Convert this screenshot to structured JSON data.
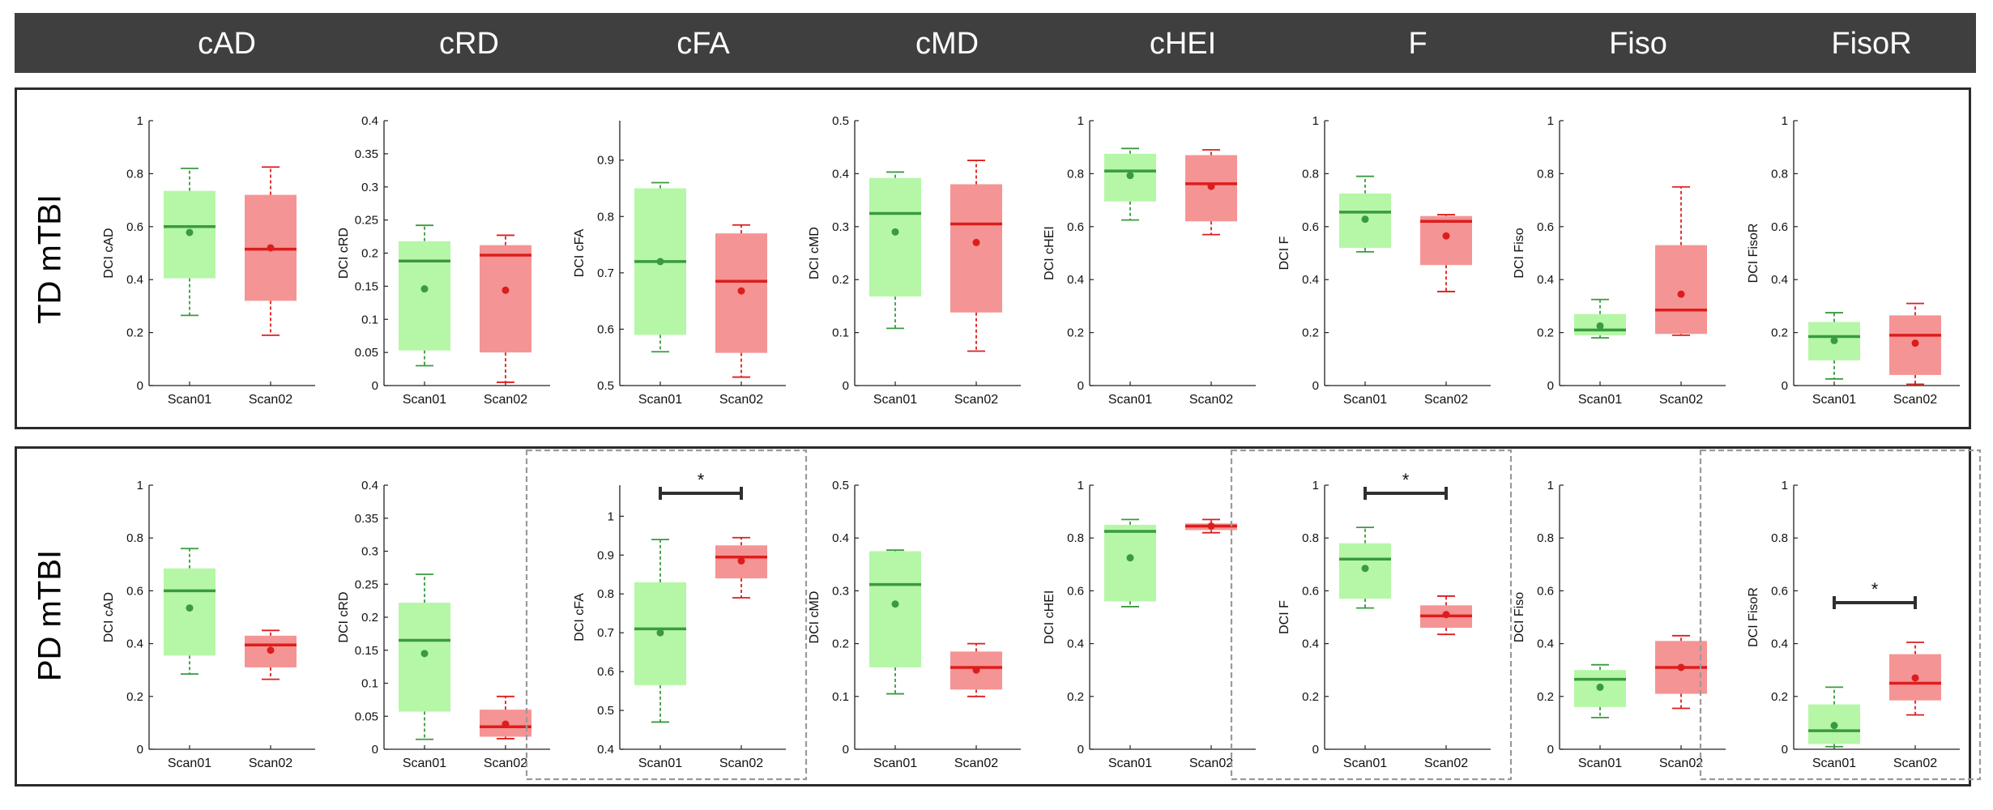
{
  "header": {
    "columns": [
      "cAD",
      "cRD",
      "cFA",
      "cMD",
      "cHEI",
      "F",
      "Fiso",
      "FisoR"
    ]
  },
  "rows": [
    {
      "label": "TD mTBI"
    },
    {
      "label": "PD mTBI"
    }
  ],
  "colors": {
    "header_bg": "#3f3f3f",
    "scan01_fill": "#b5f7a7",
    "scan01_line": "#3a9a3f",
    "scan02_fill": "#f59494",
    "scan02_line": "#dd1d1d",
    "sig_bar": "#2f2f2f",
    "sig_box": "#9a9a9a"
  },
  "chart_data": [
    {
      "type": "box",
      "row": "TD mTBI",
      "title": "cAD",
      "ylabel": "DCI cAD",
      "categories": [
        "Scan01",
        "Scan02"
      ],
      "ylim": [
        0,
        1
      ],
      "yticks": [
        "0",
        "0.2",
        "0.4",
        "0.6",
        "0.8",
        "1"
      ],
      "significance": null,
      "series": [
        {
          "name": "Scan01",
          "whisker_low": 0.265,
          "q1": 0.405,
          "median": 0.6,
          "q3": 0.735,
          "whisker_high": 0.82,
          "mean": 0.578
        },
        {
          "name": "Scan02",
          "whisker_low": 0.19,
          "q1": 0.32,
          "median": 0.515,
          "q3": 0.72,
          "whisker_high": 0.825,
          "mean": 0.52
        }
      ]
    },
    {
      "type": "box",
      "row": "TD mTBI",
      "title": "cRD",
      "ylabel": "DCI cRD",
      "categories": [
        "Scan01",
        "Scan02"
      ],
      "ylim": [
        0,
        0.4
      ],
      "yticks": [
        "0",
        "0.05",
        "0.1",
        "0.15",
        "0.2",
        "0.25",
        "0.3",
        "0.35",
        "0.4"
      ],
      "significance": null,
      "series": [
        {
          "name": "Scan01",
          "whisker_low": 0.03,
          "q1": 0.053,
          "median": 0.188,
          "q3": 0.218,
          "whisker_high": 0.242,
          "mean": 0.146
        },
        {
          "name": "Scan02",
          "whisker_low": 0.005,
          "q1": 0.05,
          "median": 0.197,
          "q3": 0.212,
          "whisker_high": 0.227,
          "mean": 0.144
        }
      ]
    },
    {
      "type": "box",
      "row": "TD mTBI",
      "title": "cFA",
      "ylabel": "DCI cFA",
      "categories": [
        "Scan01",
        "Scan02"
      ],
      "ylim": [
        0.5,
        0.97
      ],
      "yticks": [
        "0.5",
        "0.6",
        "0.7",
        "0.8",
        "0.9"
      ],
      "significance": null,
      "series": [
        {
          "name": "Scan01",
          "whisker_low": 0.56,
          "q1": 0.59,
          "median": 0.72,
          "q3": 0.85,
          "whisker_high": 0.86,
          "mean": 0.72
        },
        {
          "name": "Scan02",
          "whisker_low": 0.515,
          "q1": 0.558,
          "median": 0.685,
          "q3": 0.77,
          "whisker_high": 0.785,
          "mean": 0.668
        }
      ]
    },
    {
      "type": "box",
      "row": "TD mTBI",
      "title": "cMD",
      "ylabel": "DCI cMD",
      "categories": [
        "Scan01",
        "Scan02"
      ],
      "ylim": [
        0,
        0.5
      ],
      "yticks": [
        "0",
        "0.1",
        "0.2",
        "0.3",
        "0.4",
        "0.5"
      ],
      "significance": null,
      "series": [
        {
          "name": "Scan01",
          "whisker_low": 0.108,
          "q1": 0.168,
          "median": 0.325,
          "q3": 0.392,
          "whisker_high": 0.403,
          "mean": 0.29
        },
        {
          "name": "Scan02",
          "whisker_low": 0.065,
          "q1": 0.138,
          "median": 0.305,
          "q3": 0.38,
          "whisker_high": 0.425,
          "mean": 0.27
        }
      ]
    },
    {
      "type": "box",
      "row": "TD mTBI",
      "title": "cHEI",
      "ylabel": "DCI cHEI",
      "categories": [
        "Scan01",
        "Scan02"
      ],
      "ylim": [
        0,
        1
      ],
      "yticks": [
        "0",
        "0.2",
        "0.4",
        "0.6",
        "0.8",
        "1"
      ],
      "significance": null,
      "series": [
        {
          "name": "Scan01",
          "whisker_low": 0.625,
          "q1": 0.695,
          "median": 0.81,
          "q3": 0.875,
          "whisker_high": 0.895,
          "mean": 0.793
        },
        {
          "name": "Scan02",
          "whisker_low": 0.57,
          "q1": 0.62,
          "median": 0.762,
          "q3": 0.87,
          "whisker_high": 0.89,
          "mean": 0.752
        }
      ]
    },
    {
      "type": "box",
      "row": "TD mTBI",
      "title": "F",
      "ylabel": "DCI F",
      "categories": [
        "Scan01",
        "Scan02"
      ],
      "ylim": [
        0,
        1
      ],
      "yticks": [
        "0",
        "0.2",
        "0.4",
        "0.6",
        "0.8",
        "1"
      ],
      "significance": null,
      "series": [
        {
          "name": "Scan01",
          "whisker_low": 0.505,
          "q1": 0.52,
          "median": 0.655,
          "q3": 0.725,
          "whisker_high": 0.79,
          "mean": 0.628
        },
        {
          "name": "Scan02",
          "whisker_low": 0.355,
          "q1": 0.455,
          "median": 0.62,
          "q3": 0.64,
          "whisker_high": 0.645,
          "mean": 0.565
        }
      ]
    },
    {
      "type": "box",
      "row": "TD mTBI",
      "title": "Fiso",
      "ylabel": "DCI Fiso",
      "categories": [
        "Scan01",
        "Scan02"
      ],
      "ylim": [
        0,
        1
      ],
      "yticks": [
        "0",
        "0.2",
        "0.4",
        "0.6",
        "0.8",
        "1"
      ],
      "significance": null,
      "series": [
        {
          "name": "Scan01",
          "whisker_low": 0.18,
          "q1": 0.19,
          "median": 0.21,
          "q3": 0.27,
          "whisker_high": 0.325,
          "mean": 0.225
        },
        {
          "name": "Scan02",
          "whisker_low": 0.19,
          "q1": 0.195,
          "median": 0.285,
          "q3": 0.53,
          "whisker_high": 0.75,
          "mean": 0.345
        }
      ]
    },
    {
      "type": "box",
      "row": "TD mTBI",
      "title": "FisoR",
      "ylabel": "DCI FisoR",
      "categories": [
        "Scan01",
        "Scan02"
      ],
      "ylim": [
        0,
        1
      ],
      "yticks": [
        "0",
        "0.2",
        "0.4",
        "0.6",
        "0.8",
        "1"
      ],
      "significance": null,
      "series": [
        {
          "name": "Scan01",
          "whisker_low": 0.025,
          "q1": 0.095,
          "median": 0.185,
          "q3": 0.24,
          "whisker_high": 0.275,
          "mean": 0.17
        },
        {
          "name": "Scan02",
          "whisker_low": 0.005,
          "q1": 0.04,
          "median": 0.19,
          "q3": 0.265,
          "whisker_high": 0.31,
          "mean": 0.16
        }
      ]
    },
    {
      "type": "box",
      "row": "PD mTBI",
      "title": "cAD",
      "ylabel": "DCI cAD",
      "categories": [
        "Scan01",
        "Scan02"
      ],
      "ylim": [
        0,
        1
      ],
      "yticks": [
        "0",
        "0.2",
        "0.4",
        "0.6",
        "0.8",
        "1"
      ],
      "significance": null,
      "series": [
        {
          "name": "Scan01",
          "whisker_low": 0.285,
          "q1": 0.355,
          "median": 0.6,
          "q3": 0.685,
          "whisker_high": 0.76,
          "mean": 0.535
        },
        {
          "name": "Scan02",
          "whisker_low": 0.265,
          "q1": 0.31,
          "median": 0.395,
          "q3": 0.43,
          "whisker_high": 0.45,
          "mean": 0.375
        }
      ]
    },
    {
      "type": "box",
      "row": "PD mTBI",
      "title": "cRD",
      "ylabel": "DCI cRD",
      "categories": [
        "Scan01",
        "Scan02"
      ],
      "ylim": [
        0,
        0.4
      ],
      "yticks": [
        "0",
        "0.05",
        "0.1",
        "0.15",
        "0.2",
        "0.25",
        "0.3",
        "0.35",
        "0.4"
      ],
      "significance": null,
      "series": [
        {
          "name": "Scan01",
          "whisker_low": 0.015,
          "q1": 0.057,
          "median": 0.165,
          "q3": 0.222,
          "whisker_high": 0.265,
          "mean": 0.145
        },
        {
          "name": "Scan02",
          "whisker_low": 0.016,
          "q1": 0.019,
          "median": 0.034,
          "q3": 0.06,
          "whisker_high": 0.08,
          "mean": 0.038
        }
      ]
    },
    {
      "type": "box",
      "row": "PD mTBI",
      "title": "cFA",
      "ylabel": "DCI cFA",
      "categories": [
        "Scan01",
        "Scan02"
      ],
      "ylim": [
        0.4,
        1.08
      ],
      "yticks": [
        "0.4",
        "0.5",
        "0.6",
        "0.7",
        "0.8",
        "0.9",
        "1"
      ],
      "significance": "*",
      "series": [
        {
          "name": "Scan01",
          "whisker_low": 0.47,
          "q1": 0.565,
          "median": 0.71,
          "q3": 0.83,
          "whisker_high": 0.94,
          "mean": 0.7
        },
        {
          "name": "Scan02",
          "whisker_low": 0.79,
          "q1": 0.84,
          "median": 0.895,
          "q3": 0.925,
          "whisker_high": 0.945,
          "mean": 0.885
        }
      ]
    },
    {
      "type": "box",
      "row": "PD mTBI",
      "title": "cMD",
      "ylabel": "DCI cMD",
      "categories": [
        "Scan01",
        "Scan02"
      ],
      "ylim": [
        0,
        0.5
      ],
      "yticks": [
        "0",
        "0.1",
        "0.2",
        "0.3",
        "0.4",
        "0.5"
      ],
      "significance": null,
      "series": [
        {
          "name": "Scan01",
          "whisker_low": 0.105,
          "q1": 0.155,
          "median": 0.312,
          "q3": 0.375,
          "whisker_high": 0.377,
          "mean": 0.275
        },
        {
          "name": "Scan02",
          "whisker_low": 0.1,
          "q1": 0.113,
          "median": 0.155,
          "q3": 0.185,
          "whisker_high": 0.2,
          "mean": 0.15
        }
      ]
    },
    {
      "type": "box",
      "row": "PD mTBI",
      "title": "cHEI",
      "ylabel": "DCI cHEI",
      "categories": [
        "Scan01",
        "Scan02"
      ],
      "ylim": [
        0,
        1
      ],
      "yticks": [
        "0",
        "0.2",
        "0.4",
        "0.6",
        "0.8",
        "1"
      ],
      "significance": null,
      "series": [
        {
          "name": "Scan01",
          "whisker_low": 0.54,
          "q1": 0.56,
          "median": 0.825,
          "q3": 0.85,
          "whisker_high": 0.87,
          "mean": 0.725
        },
        {
          "name": "Scan02",
          "whisker_low": 0.82,
          "q1": 0.83,
          "median": 0.845,
          "q3": 0.855,
          "whisker_high": 0.87,
          "mean": 0.845
        }
      ]
    },
    {
      "type": "box",
      "row": "PD mTBI",
      "title": "F",
      "ylabel": "DCI F",
      "categories": [
        "Scan01",
        "Scan02"
      ],
      "ylim": [
        0,
        1
      ],
      "yticks": [
        "0",
        "0.2",
        "0.4",
        "0.6",
        "0.8",
        "1"
      ],
      "significance": "*",
      "series": [
        {
          "name": "Scan01",
          "whisker_low": 0.535,
          "q1": 0.57,
          "median": 0.72,
          "q3": 0.78,
          "whisker_high": 0.84,
          "mean": 0.685
        },
        {
          "name": "Scan02",
          "whisker_low": 0.435,
          "q1": 0.46,
          "median": 0.505,
          "q3": 0.545,
          "whisker_high": 0.58,
          "mean": 0.51
        }
      ]
    },
    {
      "type": "box",
      "row": "PD mTBI",
      "title": "Fiso",
      "ylabel": "DCI Fiso",
      "categories": [
        "Scan01",
        "Scan02"
      ],
      "ylim": [
        0,
        1
      ],
      "yticks": [
        "0",
        "0.2",
        "0.4",
        "0.6",
        "0.8",
        "1"
      ],
      "significance": null,
      "series": [
        {
          "name": "Scan01",
          "whisker_low": 0.12,
          "q1": 0.16,
          "median": 0.265,
          "q3": 0.3,
          "whisker_high": 0.32,
          "mean": 0.235
        },
        {
          "name": "Scan02",
          "whisker_low": 0.155,
          "q1": 0.21,
          "median": 0.31,
          "q3": 0.41,
          "whisker_high": 0.43,
          "mean": 0.31
        }
      ]
    },
    {
      "type": "box",
      "row": "PD mTBI",
      "title": "FisoR",
      "ylabel": "DCI FisoR",
      "categories": [
        "Scan01",
        "Scan02"
      ],
      "ylim": [
        0,
        1
      ],
      "yticks": [
        "0",
        "0.2",
        "0.4",
        "0.6",
        "0.8",
        "1"
      ],
      "significance": "*",
      "series": [
        {
          "name": "Scan01",
          "whisker_low": 0.01,
          "q1": 0.02,
          "median": 0.07,
          "q3": 0.17,
          "whisker_high": 0.235,
          "mean": 0.09
        },
        {
          "name": "Scan02",
          "whisker_low": 0.13,
          "q1": 0.185,
          "median": 0.25,
          "q3": 0.36,
          "whisker_high": 0.405,
          "mean": 0.27
        }
      ]
    }
  ]
}
